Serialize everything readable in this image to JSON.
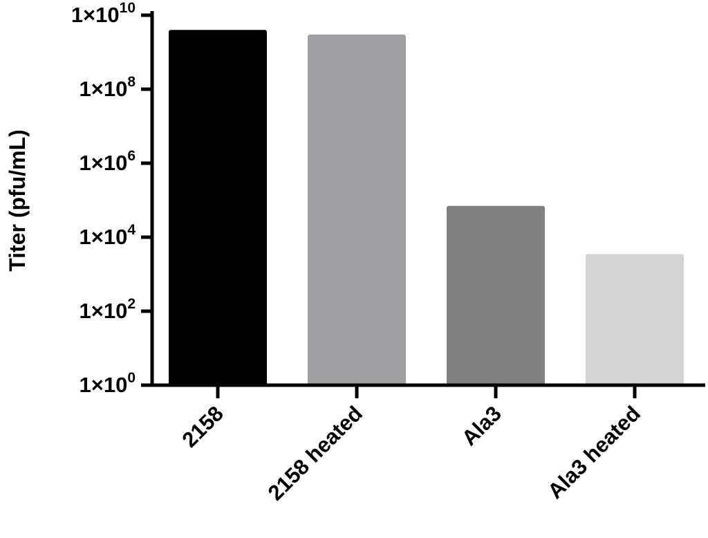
{
  "chart_data": {
    "type": "bar",
    "y_label": "Titer (pfu/mL)",
    "log_scale": true,
    "categories": [
      "2158",
      "2158 heated",
      "Ala3",
      "Ala3 heated"
    ],
    "values": [
      4000000000,
      3000000000,
      70000,
      3500
    ],
    "colors": [
      "#000000",
      "#a0a0a4",
      "#808080",
      "#d4d4d4"
    ],
    "ylim": [
      1,
      10000000000
    ],
    "yticks": [
      {
        "value": 1,
        "label": "1×10",
        "exponent": "0"
      },
      {
        "value": 100,
        "label": "1×10",
        "exponent": "2"
      },
      {
        "value": 10000,
        "label": "1×10",
        "exponent": "4"
      },
      {
        "value": 1000000,
        "label": "1×10",
        "exponent": "6"
      },
      {
        "value": 100000000,
        "label": "1×10",
        "exponent": "8"
      },
      {
        "value": 10000000000,
        "label": "1×10",
        "exponent": "10"
      }
    ]
  }
}
